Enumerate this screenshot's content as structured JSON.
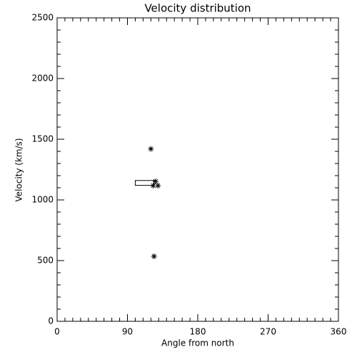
{
  "chart_data": {
    "type": "scatter",
    "title": "Velocity distribution",
    "x_label": "Angle from north",
    "y_label": "Velocity (km/s)",
    "x": [
      120,
      124,
      126,
      123,
      129
    ],
    "values": [
      1420,
      535,
      1153,
      1118,
      1118
    ],
    "box": {
      "x": [
        100,
        124
      ],
      "y": [
        1120,
        1160
      ]
    },
    "color": "#000000",
    "xlim": [
      0,
      360
    ],
    "xticks": [
      0,
      90,
      180,
      270,
      360
    ],
    "ylim": [
      0,
      2500
    ],
    "yticks": [
      0,
      500,
      1000,
      1500,
      2000,
      2500
    ]
  }
}
